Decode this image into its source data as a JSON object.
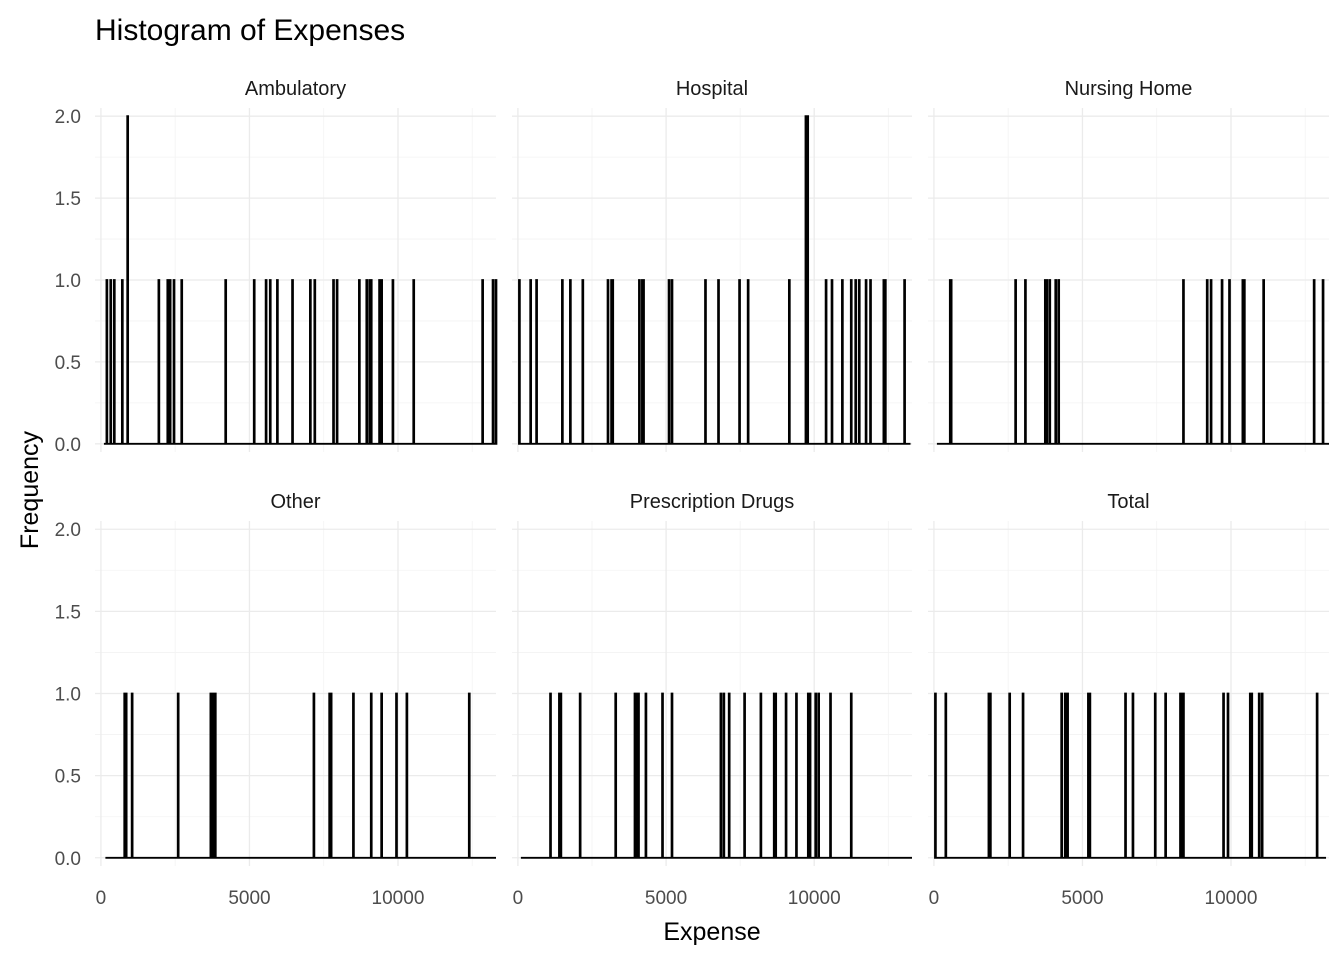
{
  "chart_data": {
    "type": "histogram",
    "title": "Histogram of Expenses",
    "xlabel": "Expense",
    "ylabel": "Frequency",
    "xlim": [
      -200,
      13300
    ],
    "ylim": [
      -0.05,
      2.05
    ],
    "x_ticks": [
      0,
      5000,
      10000
    ],
    "x_tick_labels": [
      "0",
      "5000",
      "10000"
    ],
    "y_ticks": [
      0.0,
      0.5,
      1.0,
      1.5,
      2.0
    ],
    "y_tick_labels": [
      "0.0",
      "0.5",
      "1.0",
      "1.5",
      "2.0"
    ],
    "bin_width": 30,
    "grid": true,
    "facets": [
      {
        "name": "Ambulatory",
        "x_range": [
          100,
          13300
        ],
        "values_of_count_1": [
          200,
          330,
          450,
          720,
          1950,
          2250,
          2330,
          2460,
          2720,
          4200,
          5160,
          5560,
          5700,
          5940,
          6450,
          7050,
          7200,
          7830,
          7950,
          8700,
          8950,
          9050,
          9100,
          9380,
          9450,
          9830,
          10530,
          12850,
          13200,
          13300
        ],
        "values_of_count_2": [
          900
        ]
      },
      {
        "name": "Hospital",
        "x_range": [
          50,
          13250
        ],
        "values_of_count_1": [
          50,
          430,
          630,
          1500,
          1770,
          2190,
          3040,
          3160,
          3200,
          4100,
          4200,
          4240,
          5100,
          5200,
          6330,
          6770,
          7480,
          7770,
          9160,
          10400,
          10600,
          10950,
          11250,
          11400,
          11520,
          11750,
          11900,
          12350,
          12400,
          13050
        ],
        "values_of_count_2": [
          9720,
          9780
        ]
      },
      {
        "name": "Nursing Home",
        "x_range": [
          100,
          13300
        ],
        "values_of_count_1": [
          550,
          580,
          2750,
          3080,
          3750,
          3800,
          3900,
          4100,
          4200,
          8400,
          9200,
          9330,
          9700,
          9950,
          10400,
          10450,
          11100,
          12800,
          13100
        ],
        "values_of_count_2": []
      },
      {
        "name": "Other",
        "x_range": [
          150,
          13300
        ],
        "values_of_count_1": [
          800,
          850,
          1050,
          2600,
          3700,
          3750,
          3780,
          3850,
          7170,
          7700,
          7750,
          8500,
          9100,
          9450,
          9950,
          10300,
          12400
        ],
        "values_of_count_2": []
      },
      {
        "name": "Prescription Drugs",
        "x_range": [
          100,
          13300
        ],
        "values_of_count_1": [
          1100,
          1400,
          1450,
          2100,
          3300,
          3950,
          4000,
          4070,
          4320,
          4880,
          5200,
          6850,
          6950,
          7130,
          7650,
          8200,
          8650,
          8700,
          9050,
          9400,
          9800,
          9860,
          10050,
          10150,
          10550,
          11250
        ],
        "values_of_count_2": []
      },
      {
        "name": "Total",
        "x_range": [
          50,
          13200
        ],
        "values_of_count_1": [
          50,
          400,
          1850,
          1900,
          2550,
          3000,
          4300,
          4420,
          4500,
          5200,
          5250,
          6450,
          6700,
          7450,
          7800,
          8300,
          8350,
          8400,
          9750,
          9900,
          10650,
          10700,
          10950,
          11050,
          12900
        ],
        "values_of_count_2": []
      }
    ]
  }
}
